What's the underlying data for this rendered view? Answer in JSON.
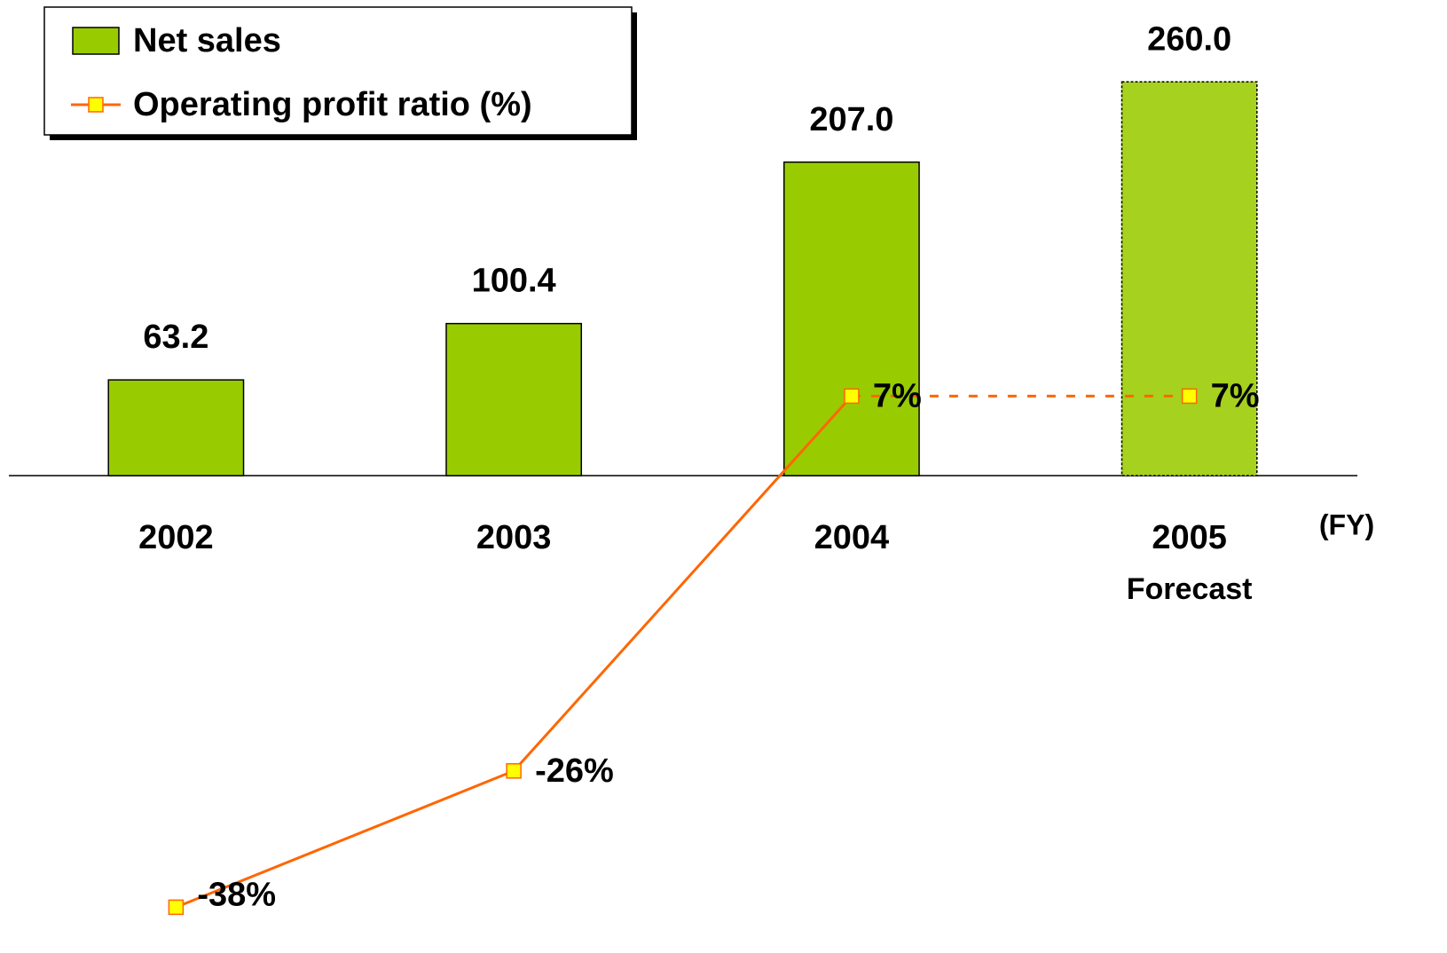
{
  "chart_data": {
    "type": "bar_line",
    "categories": [
      "2002",
      "2003",
      "2004",
      "2005"
    ],
    "category_notes": [
      null,
      null,
      null,
      "Forecast"
    ],
    "xlabel": "(FY)",
    "ylim": [
      -300,
      300
    ],
    "y2lim": [
      -40,
      40
    ],
    "legend": "top-left",
    "series": [
      {
        "name": "Net sales",
        "type": "bar",
        "color": "#99cc00",
        "colors": [
          "#99cc00",
          "#99cc00",
          "#99cc00",
          "#a6d11f"
        ],
        "dashed": [
          false,
          false,
          false,
          true
        ],
        "values": [
          63.2,
          100.4,
          207.0,
          260.0
        ],
        "value_labels": [
          "63.2",
          "100.4",
          "207.0",
          "260.0"
        ]
      },
      {
        "name": "Operating profit ratio (%)",
        "type": "line",
        "axis": "y2",
        "color": "#ff6600",
        "marker_color": "#ffff00",
        "dashed": [
          false,
          false,
          false,
          true
        ],
        "values": [
          -38,
          -26,
          7,
          7
        ],
        "value_labels": [
          "-38%",
          "-26%",
          "7%",
          "7%"
        ]
      }
    ]
  }
}
